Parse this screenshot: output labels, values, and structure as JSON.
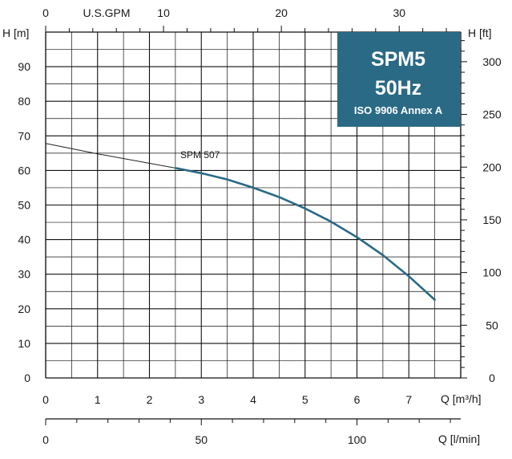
{
  "chart_data": {
    "type": "line",
    "title_box": {
      "line1": "SPM5",
      "line2": "50Hz",
      "line3": "ISO 9906 Annex A",
      "background": "#2a6a85"
    },
    "x": {
      "label": "Q [m³/h]",
      "range": [
        0,
        8
      ],
      "ticks": [
        "0",
        "1",
        "2",
        "3",
        "4",
        "5",
        "6",
        "7"
      ]
    },
    "x_top": {
      "label": "U.S.GPM",
      "range": [
        0,
        35.22
      ],
      "ticks": [
        {
          "value": 0,
          "text": "0"
        },
        {
          "value": 10,
          "text": "10"
        },
        {
          "value": 20,
          "text": "20"
        },
        {
          "value": 30,
          "text": "30"
        }
      ]
    },
    "x_bottom2": {
      "label": "Q [l/min]",
      "range": [
        0,
        133.33
      ],
      "ticks": [
        {
          "value": 0,
          "text": "0"
        },
        {
          "value": 50,
          "text": "50"
        },
        {
          "value": 100,
          "text": "100"
        }
      ]
    },
    "y_left": {
      "label": "H [m]",
      "range": [
        0,
        100
      ],
      "ticks": [
        "0",
        "10",
        "20",
        "30",
        "40",
        "50",
        "60",
        "70",
        "80",
        "90"
      ]
    },
    "y_right": {
      "label": "H [ft]",
      "range": [
        0,
        328.08
      ],
      "ticks": [
        {
          "value": 0,
          "text": "0"
        },
        {
          "value": 50,
          "text": "50"
        },
        {
          "value": 100,
          "text": "100"
        },
        {
          "value": 150,
          "text": "150"
        },
        {
          "value": 200,
          "text": "200"
        },
        {
          "value": 250,
          "text": "250"
        },
        {
          "value": 300,
          "text": "300"
        }
      ]
    },
    "grid": true,
    "series": [
      {
        "name": "SPM 507",
        "color": "#2a6a85",
        "extrapolated": [
          [
            0,
            67.8
          ],
          [
            1,
            64.8
          ],
          [
            2.5,
            60.7
          ]
        ],
        "points": [
          [
            2.5,
            60.7
          ],
          [
            3,
            59.2
          ],
          [
            3.5,
            57.4
          ],
          [
            4,
            55.0
          ],
          [
            4.5,
            52.3
          ],
          [
            5,
            49.0
          ],
          [
            5.5,
            45.2
          ],
          [
            6,
            40.7
          ],
          [
            6.5,
            35.5
          ],
          [
            7,
            29.4
          ],
          [
            7.5,
            22.6
          ]
        ]
      }
    ]
  }
}
